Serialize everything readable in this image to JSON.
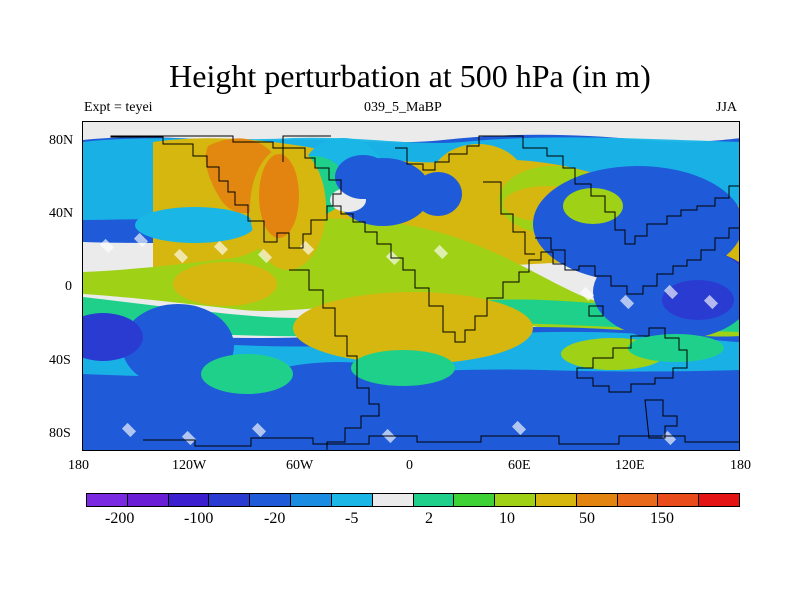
{
  "title": "Height perturbation at 500 hPa (in m)",
  "left_label": "Expt = teyei",
  "center_label": "039_5_MaBP",
  "right_label": "JJA",
  "lat_ticks": [
    "80N",
    "40N",
    "0",
    "40S",
    "80S"
  ],
  "lon_ticks": [
    "180",
    "120W",
    "60W",
    "0",
    "60E",
    "120E",
    "180"
  ],
  "colorbar": {
    "colors": [
      "#7a2ae0",
      "#6a1fd6",
      "#3c1fcf",
      "#2a3bd2",
      "#1f5bd8",
      "#1a8ce1",
      "#19b6e6",
      "#ebebeb",
      "#1fd08a",
      "#3fd234",
      "#9fd116",
      "#d5b70f",
      "#e38410",
      "#e86a1a",
      "#ea4b1a",
      "#e41414"
    ],
    "labels": [
      "-200",
      "-100",
      "-20",
      "-5",
      "2",
      "10",
      "50",
      "150"
    ]
  },
  "colors": {
    "background": "#ffffff",
    "map_gray": "#e9eaea"
  }
}
